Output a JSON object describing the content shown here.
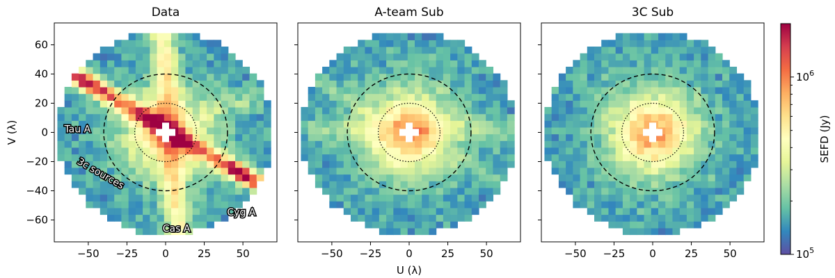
{
  "chart_data": {
    "type": "heatmap",
    "panels": [
      {
        "title": "Data",
        "ylabel": "V (λ)",
        "annotations": [
          {
            "text": "Tau A",
            "x": -57,
            "y": 0,
            "angle": 0
          },
          {
            "text": "3c sources",
            "x": -43,
            "y": -30,
            "angle": -30
          },
          {
            "text": "Cyg A",
            "x": 49,
            "y": -57,
            "angle": 0
          },
          {
            "text": "Cas A",
            "x": 7,
            "y": -68,
            "angle": 0
          }
        ],
        "features": "strong diagonal band from (-60,40) to (60,-35), vertical band along U≈-5..12, central bright core"
      },
      {
        "title": "A-team Sub",
        "xlabel": "U (λ)",
        "annotations": [],
        "features": "central bright core, faint residual horizontal and diagonal structure"
      },
      {
        "title": "3C Sub",
        "annotations": [],
        "features": "central bright core only"
      }
    ],
    "xlim": [
      -72,
      72
    ],
    "ylim": [
      -75,
      75
    ],
    "x_ticks": [
      -50,
      -25,
      0,
      25,
      50
    ],
    "y_ticks": [
      -60,
      -40,
      -20,
      0,
      20,
      40,
      60
    ],
    "x_tick_labels": [
      "−50",
      "−25",
      "0",
      "25",
      "50"
    ],
    "y_tick_labels": [
      "−60",
      "−40",
      "−20",
      "0",
      "20",
      "40",
      "60"
    ],
    "data_radius": 70,
    "circles": [
      {
        "radius": 40,
        "style": "dashed"
      },
      {
        "radius": 20,
        "style": "dotted"
      }
    ],
    "colorbar": {
      "label": "SEFD (Jy)",
      "scale": "log",
      "min": 100000,
      "max": 2000000,
      "tick_base": "10",
      "ticks": [
        {
          "value": 100000,
          "exp": "5"
        },
        {
          "value": 1000000,
          "exp": "6"
        }
      ],
      "colormap": "Spectral_r",
      "colors": [
        "#5e4fa2",
        "#3288bd",
        "#66c2a5",
        "#abdda4",
        "#e6f598",
        "#ffffbf",
        "#fee08b",
        "#fdae61",
        "#f46d43",
        "#d53e4f",
        "#9e0142"
      ]
    }
  }
}
